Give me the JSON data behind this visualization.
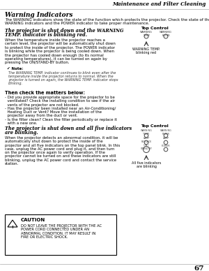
{
  "page_number": "67",
  "header_text": "Maintenance and Filter Cleaning",
  "section_title": "Warning Indicators",
  "intro_text": "The WARNING indicators show the state of the function which protects the projector. Check the state of the WARNING indicators and the POWER indicator to take proper maintenance.",
  "subsection1_title": "The projector is shut down and the WARNING\nTEMP. indicator is blinking red.",
  "subsection1_body": "When the temperature inside the projector reaches a\ncertain level, the projector will be automatically shut down\nto protect the inside of the projector. The POWER indicator\nis blinking while the projector is being cooled down. When\nthe projector has cooled down enough (to its normal\noperating temperatures), it can be turned on again by\npressing the ON/STAND-BY button.",
  "note_label": "Note:",
  "note_text": "The WARNING TEMP. indicator continues to blink even after the\ntemperature inside the projector returns to normal. When the\nprojector is turned on again, the WARNING TEMP. indicator stops\nblinking.",
  "subsection2_title": "Then check the matters below:",
  "subsection2_body1": "- Did you provide appropriate space for the projector to be ventilated? Check the installing condition to see if the air vents of the projector are not blocked.",
  "subsection2_body2": "- Has the projector been installed near an Air-Conditioning/ Heating Duct or Vent? Move the installation of the projector away from the duct or vent.",
  "subsection2_body3": "- Is the filter clean? Clean the filter periodically or replace it with a new one.",
  "subsection3_title": "The projector is shut down and all five indicators\nare blinking.",
  "subsection3_body": "When the projector detects an abnormal condition, it will be\nautomatically shut down to protect the inside of the\nprojector and all five indicators on the top panel blink. In this\ncase, unplug the AC power cord and plug it, and then turn\non the projector once again to verify operation. If the\nprojector cannot be turned on and these indicators are still\nblinking, unplug the AC power cord and contact the service\nstation.",
  "caution_label": "CAUTION",
  "caution_text": "DO NOT LEAVE THE PROJECTOR WITH THE AC\nPOWER CORD CONNECTED UNDER AN\nABNORMAL CONDITION. IT MAY RESULT IN\nFIRE OR ELECTRIC SHOCK.",
  "diagram1_label_top": "Top Control",
  "diagram1_arrow_label": "WARNING TEMP.\nblinking red",
  "diagram2_label_top": "Top Control",
  "diagram2_arrow_label": "All five indicators\nare blinking",
  "bg_color": "#ffffff",
  "text_color": "#000000"
}
